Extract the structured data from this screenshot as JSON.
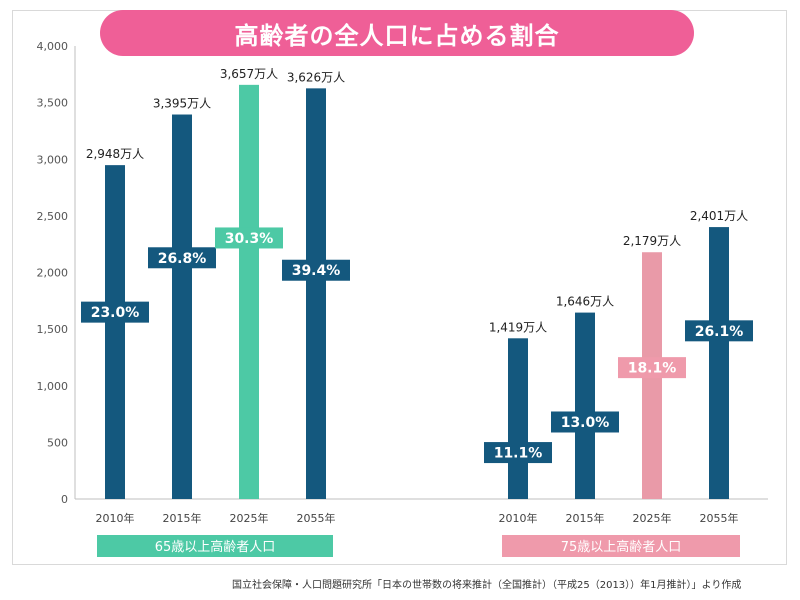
{
  "title": "高齢者の全人口に占める割合",
  "source": "国立社会保障・人口問題研究所「日本の世帯数の将来推計（全国推計）（平成25（2013））年1月推計）」より作成",
  "colors": {
    "title_bg": "#ef5f97",
    "navy": "#14587e",
    "green": "#4dc9a5",
    "pink": "#e99aa8",
    "label_navy": "#14587e",
    "label_green": "#4dc9a5",
    "label_pink": "#ef9aab"
  },
  "chart_data": {
    "type": "bar",
    "ylim": [
      0,
      4000
    ],
    "yticks": [
      "0",
      "500",
      "1,000",
      "1,500",
      "2,000",
      "2,500",
      "3,000",
      "3,500",
      "4,000"
    ],
    "ytick_values": [
      0,
      500,
      1000,
      1500,
      2000,
      2500,
      3000,
      3500,
      4000
    ],
    "grid": false,
    "groups": [
      {
        "name": "65歳以上高齢者人口",
        "label_color": "#4dc9a5",
        "categories": [
          "2010年",
          "2015年",
          "2025年",
          "2055年"
        ],
        "values": [
          2948,
          3395,
          3657,
          3626
        ],
        "value_labels": [
          "2,948万人",
          "3,395万人",
          "3,657万人",
          "3,626万人"
        ],
        "percents": [
          "23.0%",
          "26.8%",
          "30.3%",
          "39.4%"
        ],
        "percent_values": [
          1650,
          2130,
          2305,
          2020
        ],
        "highlight_index": 2,
        "highlight": "green"
      },
      {
        "name": "75歳以上高齢者人口",
        "label_color": "#ef9aab",
        "categories": [
          "2010年",
          "2015年",
          "2025年",
          "2055年"
        ],
        "values": [
          1419,
          1646,
          2179,
          2401
        ],
        "value_labels": [
          "1,419万人",
          "1,646万人",
          "2,179万人",
          "2,401万人"
        ],
        "percents": [
          "11.1%",
          "13.0%",
          "18.1%",
          "26.1%"
        ],
        "percent_values": [
          410,
          680,
          1160,
          1485
        ],
        "highlight_index": 2,
        "highlight": "pink"
      }
    ]
  }
}
